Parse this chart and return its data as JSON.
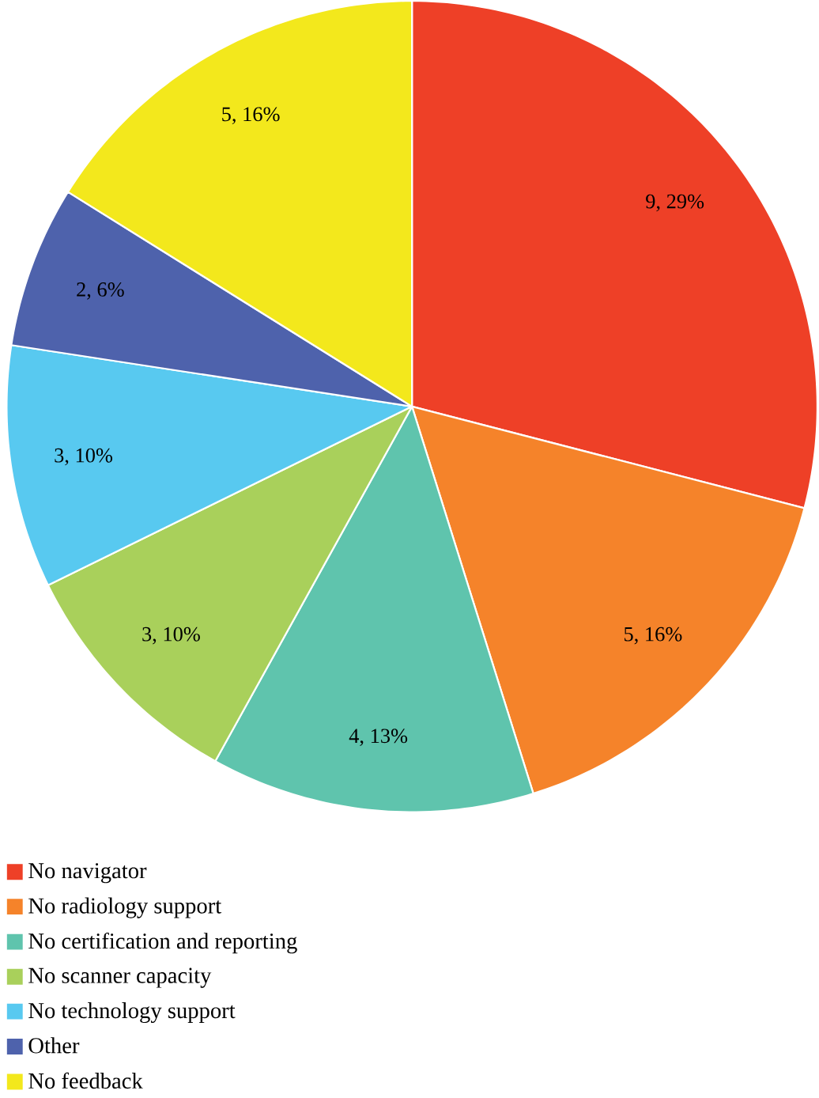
{
  "chart_data": {
    "type": "pie",
    "categories": [
      "No navigator",
      "No radiology support",
      "No certification and reporting",
      "No scanner capacity",
      "No technology support",
      "Other",
      "No feedback"
    ],
    "values": [
      9,
      5,
      4,
      3,
      3,
      2,
      5
    ],
    "value_labels": [
      "9, 29%",
      "5, 16%",
      "4, 13%",
      "3, 10%",
      "3, 10%",
      "2, 6%",
      "5, 16%"
    ],
    "colors": [
      "#ee4027",
      "#f5832a",
      "#5fc4ad",
      "#a9d05b",
      "#58c9f0",
      "#4e62ac",
      "#f3e81c"
    ],
    "legend": "bottom"
  }
}
